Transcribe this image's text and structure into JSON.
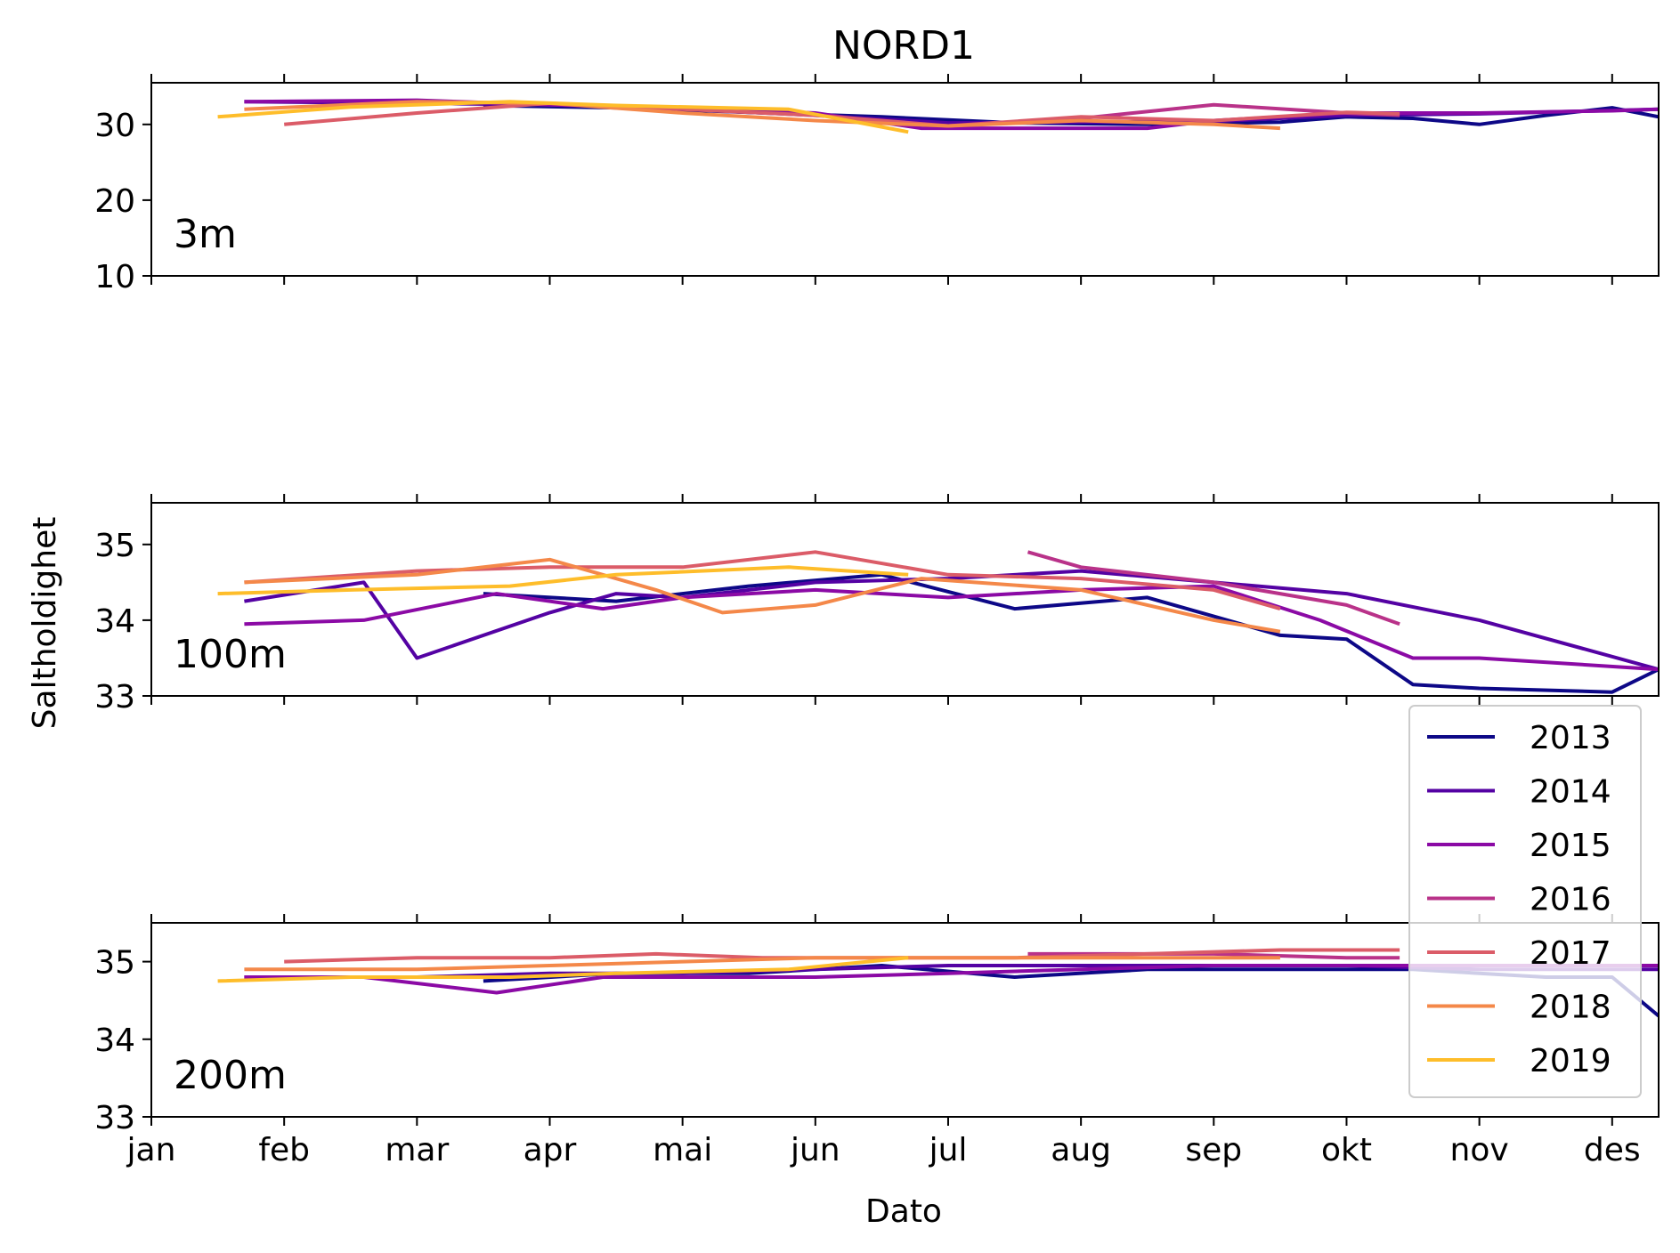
{
  "chart_data": {
    "type": "line",
    "title": "NORD1",
    "xlabel": "Dato",
    "ylabel": "Saltholdighet",
    "x_axis": {
      "unit": "month_index",
      "range": [
        0,
        11.35
      ],
      "ticks": [
        0,
        1,
        2,
        3,
        4,
        5,
        6,
        7,
        8,
        9,
        10,
        11
      ],
      "tick_labels": [
        "jan",
        "feb",
        "mar",
        "apr",
        "mai",
        "jun",
        "jul",
        "aug",
        "sep",
        "okt",
        "nov",
        "des"
      ]
    },
    "legend": {
      "placement": "lower-right",
      "entries": [
        "2013",
        "2014",
        "2015",
        "2016",
        "2017",
        "2018",
        "2019"
      ]
    },
    "colors": {
      "2013": "#0d0887",
      "2014": "#5402a3",
      "2015": "#8b0aa5",
      "2016": "#b93289",
      "2017": "#db5c68",
      "2018": "#f48849",
      "2019": "#febd2a"
    },
    "panels": [
      {
        "label": "3m",
        "ylim": [
          10,
          35.5
        ],
        "yticks": [
          10,
          20,
          30
        ],
        "series": [
          {
            "name": "2013",
            "x": [
              2.5,
              3.5,
              4.5,
              5.5,
              6.5,
              7.5,
              8.5,
              9.0,
              9.5,
              10.0,
              10.5,
              11.0,
              11.35
            ],
            "y": [
              32.5,
              32.2,
              31.6,
              31.0,
              30.2,
              30.0,
              30.3,
              31.0,
              30.8,
              30.0,
              31.2,
              32.2,
              31.0
            ]
          },
          {
            "name": "2014",
            "x": [
              0.7,
              2.0,
              3.0,
              4.0,
              5.0,
              6.0,
              7.0,
              8.0,
              9.0,
              10.0,
              11.35
            ],
            "y": [
              33.0,
              32.8,
              32.6,
              32.0,
              31.2,
              30.2,
              30.3,
              30.4,
              31.2,
              31.4,
              32.0
            ]
          },
          {
            "name": "2015",
            "x": [
              0.7,
              2.0,
              3.0,
              4.0,
              5.0,
              5.8,
              7.0,
              7.5,
              8.0,
              9.0,
              10.0,
              11.0,
              11.35
            ],
            "y": [
              33.0,
              33.2,
              32.6,
              32.2,
              31.5,
              29.5,
              29.5,
              29.5,
              30.5,
              31.5,
              31.5,
              31.8,
              32.0
            ]
          },
          {
            "name": "2016",
            "x": [
              6.6,
              7.0,
              8.0,
              8.0,
              9.0,
              9.4
            ],
            "y": [
              30.2,
              30.8,
              32.6,
              32.6,
              31.5,
              31.2
            ]
          },
          {
            "name": "2017",
            "x": [
              1.0,
              2.0,
              3.0,
              4.0,
              5.0,
              6.0,
              7.0,
              8.0,
              9.0,
              9.4
            ],
            "y": [
              30.0,
              31.5,
              32.8,
              32.0,
              31.2,
              29.8,
              31.0,
              30.5,
              31.6,
              31.4
            ]
          },
          {
            "name": "2018",
            "x": [
              0.7,
              2.0,
              3.0,
              4.0,
              5.0,
              6.0,
              7.0,
              8.0,
              8.5
            ],
            "y": [
              32.0,
              33.0,
              32.8,
              31.5,
              30.5,
              29.8,
              30.5,
              30.0,
              29.5
            ]
          },
          {
            "name": "2019",
            "x": [
              0.5,
              1.5,
              2.7,
              3.5,
              4.8,
              5.7
            ],
            "y": [
              31.0,
              32.3,
              33.0,
              32.5,
              32.0,
              29.0
            ]
          }
        ]
      },
      {
        "label": "100m",
        "ylim": [
          33,
          35.55
        ],
        "yticks": [
          33,
          34,
          35
        ],
        "series": [
          {
            "name": "2013",
            "x": [
              2.5,
              3.5,
              4.5,
              5.5,
              6.5,
              7.5,
              8.0,
              8.5,
              9.0,
              9.5,
              10.0,
              11.0,
              11.35
            ],
            "y": [
              34.35,
              34.25,
              34.45,
              34.6,
              34.15,
              34.3,
              34.05,
              33.8,
              33.75,
              33.15,
              33.1,
              33.05,
              33.35
            ]
          },
          {
            "name": "2014",
            "x": [
              0.7,
              1.6,
              2.0,
              3.0,
              3.5,
              4.0,
              5.0,
              6.0,
              7.0,
              8.0,
              9.0,
              10.0,
              11.35
            ],
            "y": [
              34.25,
              34.5,
              33.5,
              34.1,
              34.35,
              34.3,
              34.5,
              34.55,
              34.65,
              34.5,
              34.35,
              34.0,
              33.35
            ]
          },
          {
            "name": "2015",
            "x": [
              0.7,
              1.6,
              2.6,
              3.4,
              4.0,
              5.0,
              6.0,
              7.0,
              8.0,
              8.8,
              9.5,
              10.0,
              11.35
            ],
            "y": [
              33.95,
              34.0,
              34.35,
              34.15,
              34.3,
              34.4,
              34.3,
              34.4,
              34.45,
              34.0,
              33.5,
              33.5,
              33.35
            ]
          },
          {
            "name": "2016",
            "x": [
              6.6,
              7.0,
              8.0,
              9.0,
              9.4
            ],
            "y": [
              34.9,
              34.7,
              34.5,
              34.2,
              33.95
            ]
          },
          {
            "name": "2017",
            "x": [
              0.7,
              2.0,
              3.0,
              4.0,
              5.0,
              6.0,
              7.0,
              8.0,
              8.5
            ],
            "y": [
              34.5,
              34.65,
              34.7,
              34.7,
              34.9,
              34.6,
              34.55,
              34.4,
              34.15
            ]
          },
          {
            "name": "2018",
            "x": [
              0.7,
              2.0,
              3.0,
              3.8,
              4.3,
              5.0,
              5.8,
              7.0,
              8.0,
              8.5
            ],
            "y": [
              34.5,
              34.6,
              34.8,
              34.4,
              34.1,
              34.2,
              34.55,
              34.4,
              34.0,
              33.85
            ]
          },
          {
            "name": "2019",
            "x": [
              0.5,
              1.5,
              2.7,
              3.5,
              4.8,
              5.7
            ],
            "y": [
              34.35,
              34.4,
              34.45,
              34.6,
              34.7,
              34.6
            ]
          }
        ]
      },
      {
        "label": "200m",
        "ylim": [
          33,
          35.5
        ],
        "yticks": [
          33,
          34,
          35
        ],
        "series": [
          {
            "name": "2013",
            "x": [
              2.5,
              3.5,
              4.5,
              5.5,
              6.5,
              7.5,
              8.5,
              9.0,
              9.5,
              10.0,
              10.5,
              11.0,
              11.35
            ],
            "y": [
              34.75,
              34.85,
              34.85,
              34.95,
              34.8,
              34.9,
              34.9,
              34.9,
              34.9,
              34.85,
              34.8,
              34.8,
              34.3
            ]
          },
          {
            "name": "2014",
            "x": [
              0.7,
              2.0,
              3.0,
              4.0,
              5.0,
              6.0,
              7.0,
              8.0,
              9.0,
              10.0,
              11.35
            ],
            "y": [
              34.8,
              34.8,
              34.85,
              34.85,
              34.9,
              34.95,
              34.95,
              34.95,
              34.95,
              34.9,
              34.9
            ]
          },
          {
            "name": "2015",
            "x": [
              0.7,
              1.6,
              2.6,
              3.4,
              4.0,
              5.0,
              6.0,
              7.0,
              8.0,
              9.0,
              10.0,
              11.35
            ],
            "y": [
              34.8,
              34.8,
              34.6,
              34.8,
              34.8,
              34.8,
              34.85,
              34.9,
              34.95,
              34.95,
              34.95,
              34.95
            ]
          },
          {
            "name": "2016",
            "x": [
              6.6,
              7.0,
              8.0,
              9.0,
              9.4
            ],
            "y": [
              35.1,
              35.1,
              35.1,
              35.05,
              35.05
            ]
          },
          {
            "name": "2017",
            "x": [
              1.0,
              2.0,
              3.0,
              3.8,
              4.6,
              5.5,
              6.5,
              7.5,
              8.5,
              9.4
            ],
            "y": [
              35.0,
              35.05,
              35.05,
              35.1,
              35.05,
              35.05,
              35.05,
              35.1,
              35.15,
              35.15
            ]
          },
          {
            "name": "2018",
            "x": [
              0.7,
              2.0,
              3.0,
              4.0,
              5.0,
              6.0,
              7.0,
              8.0,
              8.5
            ],
            "y": [
              34.9,
              34.9,
              34.95,
              35.0,
              35.05,
              35.05,
              35.05,
              35.05,
              35.05
            ]
          },
          {
            "name": "2019",
            "x": [
              0.5,
              1.5,
              2.7,
              3.5,
              4.8,
              5.7
            ],
            "y": [
              34.75,
              34.8,
              34.8,
              34.85,
              34.9,
              35.05
            ]
          }
        ]
      }
    ]
  }
}
